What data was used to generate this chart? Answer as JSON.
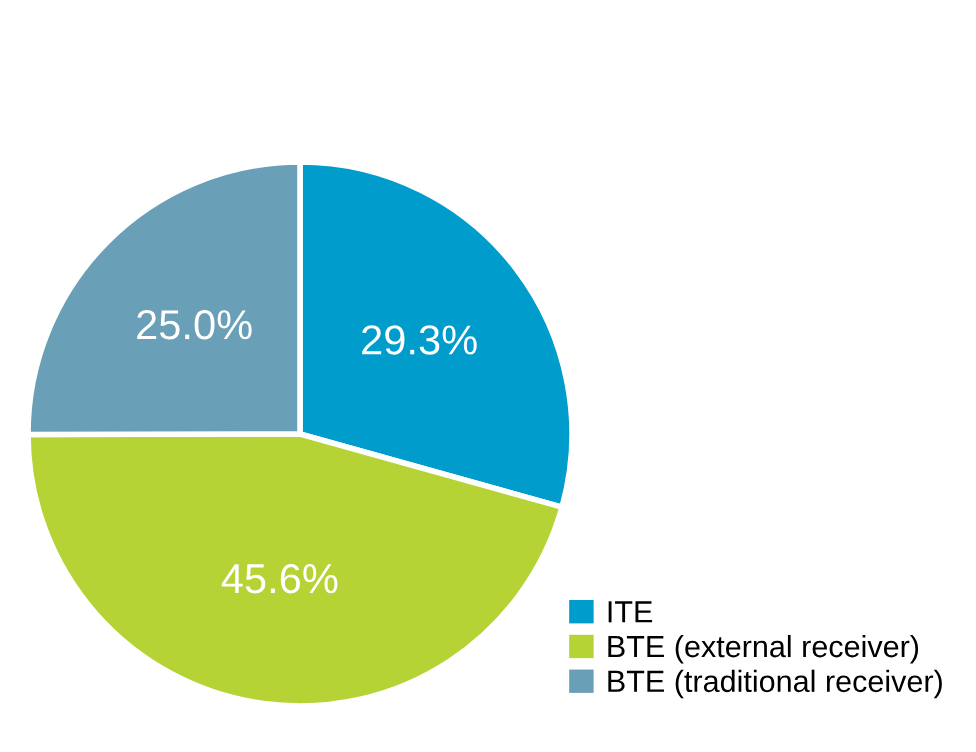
{
  "chart_data": {
    "type": "pie",
    "categories": [
      "ITE",
      "BTE (external receiver)",
      "BTE (traditional receiver)"
    ],
    "values": [
      29.3,
      45.6,
      25.0
    ],
    "value_labels": [
      "29.3%",
      "45.6%",
      "25.0%"
    ],
    "colors": [
      "#009ccb",
      "#b5d334",
      "#6aa0b7"
    ],
    "legend": "bottom right"
  }
}
